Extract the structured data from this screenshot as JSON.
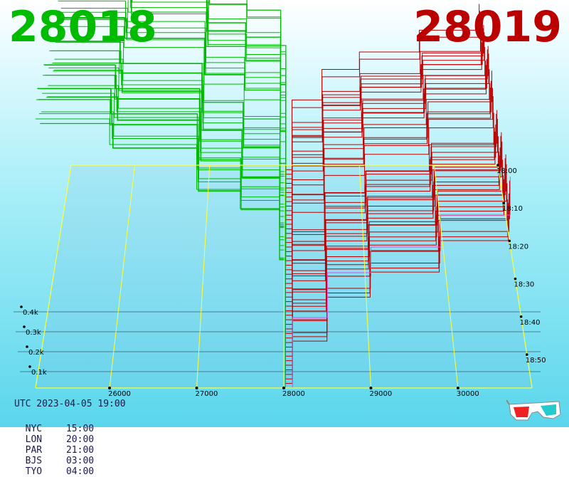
{
  "title_left": "28018",
  "title_right": "28019",
  "colors": {
    "bid": "#00bb00",
    "ask": "#bb0000",
    "last_price_line": "#ee44ee",
    "frame": "#ffff33",
    "axis": "#000000"
  },
  "utc_line": "UTC 2023-04-05 19:00",
  "timezones": [
    {
      "city": "NYC",
      "time": "15:00"
    },
    {
      "city": "LON",
      "time": "20:00"
    },
    {
      "city": "PAR",
      "time": "21:00"
    },
    {
      "city": "BJS",
      "time": "03:00"
    },
    {
      "city": "TYO",
      "time": "04:00"
    }
  ],
  "icon": "3d-glasses-icon",
  "chart_data": {
    "type": "area",
    "title": "",
    "x_ticks": [
      "26000",
      "27000",
      "28000",
      "29000",
      "30000"
    ],
    "x_tick_values": [
      26000,
      27000,
      28000,
      29000,
      30000
    ],
    "depth_ticks": [
      "0.1k",
      "0.2k",
      "0.3k",
      "0.4k"
    ],
    "time_ticks": [
      "18:00",
      "18:10",
      "18:20",
      "18:30",
      "18:40",
      "18:50"
    ],
    "xlim": [
      25150,
      30850
    ],
    "mid_price": 28018.5,
    "snapshot_count": 50,
    "series": [
      {
        "name": "28018",
        "side": "bid",
        "x": [
          25150,
          26000,
          27000,
          27500,
          27950,
          28018
        ],
        "values": [
          0.42,
          0.38,
          0.31,
          0.28,
          0.2,
          0.0
        ]
      },
      {
        "name": "28019",
        "side": "ask",
        "x": [
          28019,
          28100,
          28500,
          29000,
          29800,
          30600
        ],
        "values": [
          0.0,
          0.08,
          0.15,
          0.19,
          0.24,
          0.3
        ]
      }
    ]
  }
}
